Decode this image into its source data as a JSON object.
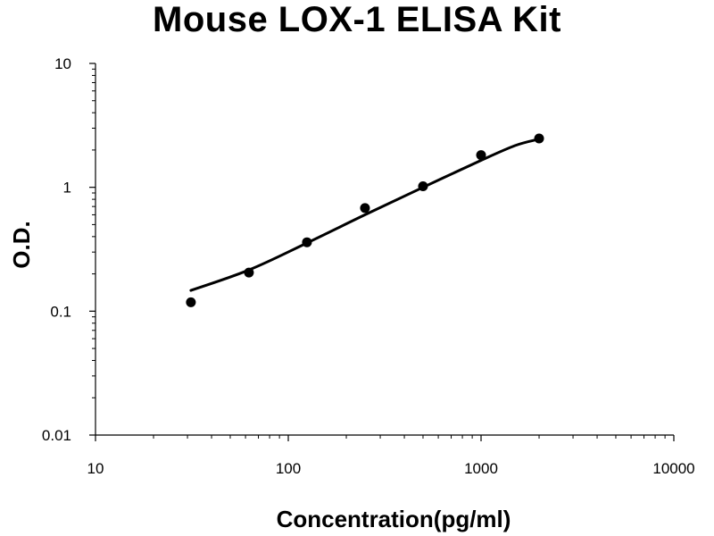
{
  "chart_data": {
    "type": "scatter",
    "title": "Mouse LOX-1 ELISA Kit",
    "xlabel": "Concentration(pg/ml)",
    "ylabel": "O.D.",
    "xscale": "log",
    "yscale": "log",
    "xlim": [
      10,
      10000
    ],
    "ylim": [
      0.01,
      10
    ],
    "x_ticks": [
      "10",
      "100",
      "1000",
      "10000"
    ],
    "y_ticks": [
      "0.01",
      "0.1",
      "1",
      "10"
    ],
    "grid": false,
    "legend": "none",
    "series": [
      {
        "points": [
          {
            "x": 31.25,
            "y": 0.118
          },
          {
            "x": 62.5,
            "y": 0.205
          },
          {
            "x": 125,
            "y": 0.36
          },
          {
            "x": 250,
            "y": 0.68
          },
          {
            "x": 500,
            "y": 1.02
          },
          {
            "x": 1000,
            "y": 1.82
          },
          {
            "x": 2000,
            "y": 2.48
          }
        ],
        "fit_curve": [
          {
            "x": 31.25,
            "y": 0.147
          },
          {
            "x": 62.5,
            "y": 0.215
          },
          {
            "x": 125,
            "y": 0.355
          },
          {
            "x": 250,
            "y": 0.6
          },
          {
            "x": 500,
            "y": 1.0
          },
          {
            "x": 1000,
            "y": 1.65
          },
          {
            "x": 1500,
            "y": 2.17
          },
          {
            "x": 2000,
            "y": 2.45
          }
        ],
        "color": "#000000"
      }
    ]
  }
}
